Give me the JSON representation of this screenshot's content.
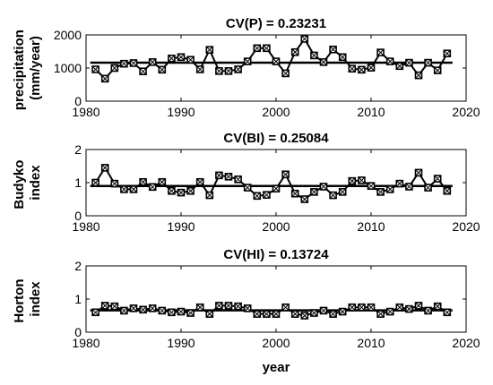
{
  "chart_data": [
    {
      "type": "line",
      "title": "CV(P) = 0.23231",
      "xlabel": "",
      "ylabel_lines": [
        "precipitation",
        "(mm/year)"
      ],
      "xlim": [
        1980,
        2020
      ],
      "ylim": [
        0,
        2000
      ],
      "xticks": [
        "1980",
        "1990",
        "2000",
        "2010",
        "2020"
      ],
      "yticks": [
        "0",
        "1000",
        "2000"
      ],
      "mean": 1162,
      "x": [
        1981,
        1982,
        1983,
        1984,
        1985,
        1986,
        1987,
        1988,
        1989,
        1990,
        1991,
        1992,
        1993,
        1994,
        1995,
        1996,
        1997,
        1998,
        1999,
        2000,
        2001,
        2002,
        2003,
        2004,
        2005,
        2006,
        2007,
        2008,
        2009,
        2010,
        2011,
        2012,
        2013,
        2014,
        2015,
        2016,
        2017,
        2018
      ],
      "values": [
        960,
        680,
        1000,
        1130,
        1150,
        900,
        1180,
        950,
        1290,
        1330,
        1250,
        960,
        1550,
        910,
        910,
        960,
        1200,
        1600,
        1600,
        1200,
        840,
        1480,
        1880,
        1380,
        1180,
        1560,
        1330,
        980,
        950,
        1010,
        1470,
        1200,
        1060,
        1160,
        780,
        1160,
        930,
        1440
      ]
    },
    {
      "type": "line",
      "title": "CV(BI) = 0.25084",
      "xlabel": "",
      "ylabel_lines": [
        "Budyko",
        "index"
      ],
      "xlim": [
        1980,
        2020
      ],
      "ylim": [
        0,
        2
      ],
      "xticks": [
        "1980",
        "1990",
        "2000",
        "2010",
        "2020"
      ],
      "yticks": [
        "0",
        "1",
        "2"
      ],
      "mean": 0.9,
      "x": [
        1981,
        1982,
        1983,
        1984,
        1985,
        1986,
        1987,
        1988,
        1989,
        1990,
        1991,
        1992,
        1993,
        1994,
        1995,
        1996,
        1997,
        1998,
        1999,
        2000,
        2001,
        2002,
        2003,
        2004,
        2005,
        2006,
        2007,
        2008,
        2009,
        2010,
        2011,
        2012,
        2013,
        2014,
        2015,
        2016,
        2017,
        2018
      ],
      "values": [
        1.0,
        1.45,
        0.97,
        0.8,
        0.8,
        1.02,
        0.87,
        1.02,
        0.75,
        0.7,
        0.75,
        1.02,
        0.62,
        1.22,
        1.18,
        1.1,
        0.85,
        0.6,
        0.63,
        0.82,
        1.25,
        0.67,
        0.5,
        0.72,
        0.88,
        0.62,
        0.72,
        1.05,
        1.07,
        0.9,
        0.72,
        0.8,
        0.97,
        0.88,
        1.3,
        0.85,
        1.12,
        0.75
      ]
    },
    {
      "type": "line",
      "title": "CV(HI) = 0.13724",
      "xlabel": "year",
      "ylabel_lines": [
        "Horton",
        "index"
      ],
      "xlim": [
        1980,
        2020
      ],
      "ylim": [
        0,
        2
      ],
      "xticks": [
        "1980",
        "1990",
        "2000",
        "2010",
        "2020"
      ],
      "yticks": [
        "0",
        "1",
        "2"
      ],
      "mean": 0.66,
      "x": [
        1981,
        1982,
        1983,
        1984,
        1985,
        1986,
        1987,
        1988,
        1989,
        1990,
        1991,
        1992,
        1993,
        1994,
        1995,
        1996,
        1997,
        1998,
        1999,
        2000,
        2001,
        2002,
        2003,
        2004,
        2005,
        2006,
        2007,
        2008,
        2009,
        2010,
        2011,
        2012,
        2013,
        2014,
        2015,
        2016,
        2017,
        2018
      ],
      "values": [
        0.6,
        0.8,
        0.78,
        0.65,
        0.72,
        0.68,
        0.72,
        0.65,
        0.6,
        0.62,
        0.58,
        0.75,
        0.55,
        0.8,
        0.8,
        0.78,
        0.72,
        0.55,
        0.55,
        0.55,
        0.75,
        0.55,
        0.5,
        0.58,
        0.65,
        0.55,
        0.62,
        0.75,
        0.75,
        0.75,
        0.55,
        0.62,
        0.75,
        0.7,
        0.8,
        0.65,
        0.78,
        0.6
      ]
    }
  ]
}
